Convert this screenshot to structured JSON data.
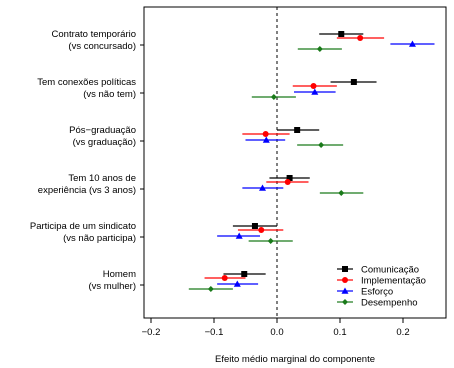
{
  "chart_data": {
    "type": "scatter",
    "xlabel": "Efeito médio marginal do componente",
    "xlim": [
      -0.24,
      0.27
    ],
    "xticks": [
      -0.2,
      -0.1,
      0.0,
      0.1,
      0.2
    ],
    "xtick_labels": [
      "−0.2",
      "−0.1",
      "0.0",
      "0.1",
      "0.2"
    ],
    "reference_line_x": 0.0,
    "legend_position": "bottom-right",
    "categories": [
      {
        "line1": "Contrato temporário",
        "line2": "(vs concursado)"
      },
      {
        "line1": "Tem conexões políticas",
        "line2": "(vs não tem)"
      },
      {
        "line1": "Pós−graduação",
        "line2": "(vs graduação)"
      },
      {
        "line1": "Tem 10 anos de",
        "line2": "experiência (vs 3 anos)"
      },
      {
        "line1": "Participa de um sindicato",
        "line2": "(vs não participa)"
      },
      {
        "line1": "Homem",
        "line2": "(vs mulher)"
      }
    ],
    "series": [
      {
        "name": "Comunicação",
        "color": "#000000",
        "marker": "square",
        "estimates": [
          0.102,
          0.122,
          0.032,
          0.02,
          -0.035,
          -0.052
        ],
        "lower": [
          0.067,
          0.085,
          0.0,
          -0.012,
          -0.07,
          -0.085
        ],
        "upper": [
          0.137,
          0.158,
          0.067,
          0.052,
          0.0,
          -0.018
        ]
      },
      {
        "name": "Implementação",
        "color": "#ff0000",
        "marker": "circle",
        "estimates": [
          0.132,
          0.058,
          -0.018,
          0.017,
          -0.025,
          -0.083
        ],
        "lower": [
          0.095,
          0.025,
          -0.055,
          -0.017,
          -0.062,
          -0.115
        ],
        "upper": [
          0.17,
          0.095,
          0.02,
          0.05,
          0.01,
          -0.05
        ]
      },
      {
        "name": "Esforço",
        "color": "#0000ff",
        "marker": "triangle",
        "estimates": [
          0.215,
          0.06,
          -0.017,
          -0.023,
          -0.06,
          -0.063
        ],
        "lower": [
          0.18,
          0.027,
          -0.05,
          -0.055,
          -0.095,
          -0.095
        ],
        "upper": [
          0.25,
          0.093,
          0.013,
          0.01,
          -0.027,
          -0.03
        ]
      },
      {
        "name": "Desempenho",
        "color": "#1a7a1a",
        "marker": "diamond",
        "estimates": [
          0.068,
          -0.005,
          0.07,
          0.102,
          -0.01,
          -0.105
        ],
        "lower": [
          0.033,
          -0.04,
          0.032,
          0.068,
          -0.045,
          -0.14
        ],
        "upper": [
          0.103,
          0.03,
          0.105,
          0.137,
          0.025,
          -0.07
        ]
      }
    ]
  }
}
